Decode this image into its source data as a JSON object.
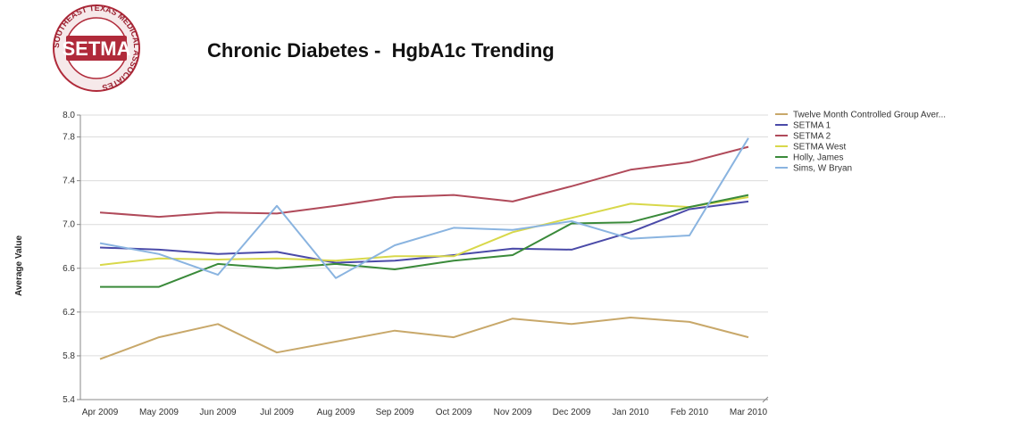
{
  "logo": {
    "text": "SETMA",
    "ring_text": "SOUTHEAST TEXAS MEDICAL ASSOCIATES"
  },
  "chart_data": {
    "type": "line",
    "title": "Chronic Diabetes -  HgbA1c Trending",
    "xlabel": "",
    "ylabel": "Average Value",
    "categories": [
      "Apr 2009",
      "May 2009",
      "Jun 2009",
      "Jul 2009",
      "Aug 2009",
      "Sep 2009",
      "Oct 2009",
      "Nov 2009",
      "Dec 2009",
      "Jan 2010",
      "Feb 2010",
      "Mar 2010"
    ],
    "ylim": [
      5.4,
      8.0
    ],
    "yticks": [
      "5.4",
      "5.8",
      "6.2",
      "6.6",
      "7.0",
      "7.4",
      "7.8",
      "8.0"
    ],
    "grid": true,
    "legend_position": "right",
    "series": [
      {
        "name": "Twelve Month Controlled Group Aver...",
        "color": "#c8a86a",
        "values": [
          5.77,
          5.97,
          6.09,
          5.83,
          5.93,
          6.03,
          5.97,
          6.14,
          6.09,
          6.15,
          6.11,
          5.97
        ]
      },
      {
        "name": "SETMA 1",
        "color": "#4a4aa8",
        "values": [
          6.79,
          6.77,
          6.73,
          6.75,
          6.65,
          6.67,
          6.72,
          6.78,
          6.77,
          6.93,
          7.14,
          7.21
        ]
      },
      {
        "name": "SETMA 2",
        "color": "#b04a5a",
        "values": [
          7.11,
          7.07,
          7.11,
          7.1,
          7.17,
          7.25,
          7.27,
          7.21,
          7.35,
          7.5,
          7.57,
          7.71
        ]
      },
      {
        "name": "SETMA West",
        "color": "#d8d84a",
        "values": [
          6.63,
          6.69,
          6.68,
          6.69,
          6.67,
          6.71,
          6.71,
          6.93,
          7.06,
          7.19,
          7.16,
          7.25
        ]
      },
      {
        "name": "Holly, James",
        "color": "#3a8a3a",
        "values": [
          6.43,
          6.43,
          6.64,
          6.6,
          6.64,
          6.59,
          6.67,
          6.72,
          7.01,
          7.02,
          7.16,
          7.27
        ]
      },
      {
        "name": "Sims, W Bryan",
        "color": "#8ab4e0",
        "values": [
          6.83,
          6.73,
          6.54,
          7.17,
          6.51,
          6.81,
          6.97,
          6.95,
          7.03,
          6.87,
          6.9,
          7.79
        ]
      }
    ]
  }
}
